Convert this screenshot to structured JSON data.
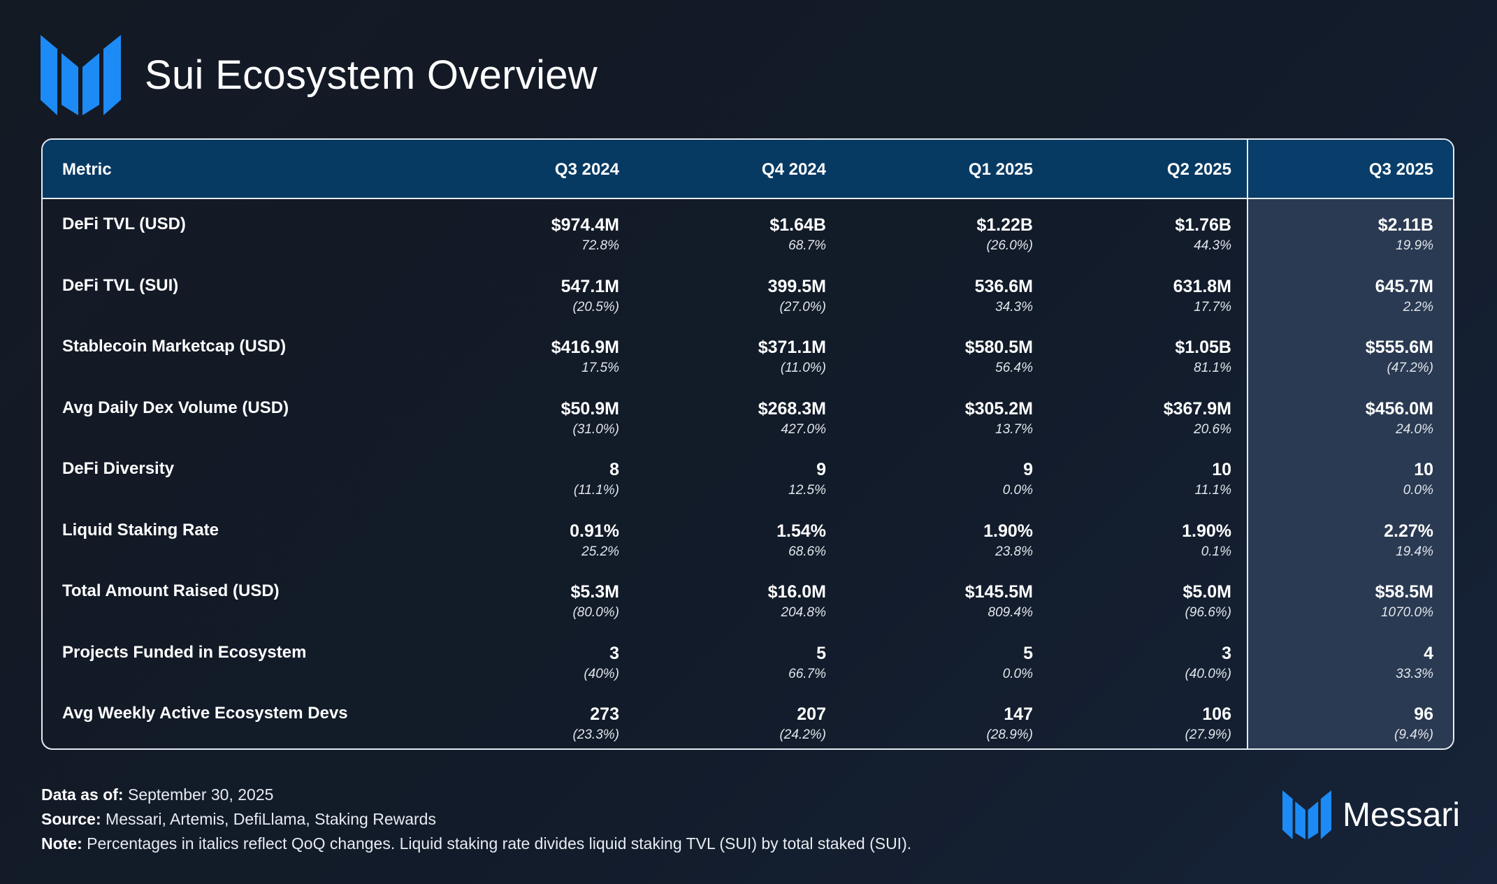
{
  "header": {
    "title": "Sui Ecosystem Overview",
    "logo_icon": "messari-m-logo-icon"
  },
  "colors": {
    "accent": "#1d8bf5",
    "header_bg": "#073a63",
    "highlight_col": "#2a3a52"
  },
  "table": {
    "headers": [
      "Metric",
      "Q3 2024",
      "Q4 2024",
      "Q1 2025",
      "Q2 2025",
      "Q3 2025"
    ],
    "rows": [
      {
        "label": "DeFi TVL (USD)",
        "cells": [
          {
            "value": "$974.4M",
            "change": "72.8%"
          },
          {
            "value": "$1.64B",
            "change": "68.7%"
          },
          {
            "value": "$1.22B",
            "change": "(26.0%)"
          },
          {
            "value": "$1.76B",
            "change": "44.3%"
          },
          {
            "value": "$2.11B",
            "change": "19.9%"
          }
        ]
      },
      {
        "label": "DeFi TVL (SUI)",
        "cells": [
          {
            "value": "547.1M",
            "change": "(20.5%)"
          },
          {
            "value": "399.5M",
            "change": "(27.0%)"
          },
          {
            "value": "536.6M",
            "change": "34.3%"
          },
          {
            "value": "631.8M",
            "change": "17.7%"
          },
          {
            "value": "645.7M",
            "change": "2.2%"
          }
        ]
      },
      {
        "label": "Stablecoin Marketcap (USD)",
        "cells": [
          {
            "value": "$416.9M",
            "change": "17.5%"
          },
          {
            "value": "$371.1M",
            "change": "(11.0%)"
          },
          {
            "value": "$580.5M",
            "change": "56.4%"
          },
          {
            "value": "$1.05B",
            "change": "81.1%"
          },
          {
            "value": "$555.6M",
            "change": "(47.2%)"
          }
        ]
      },
      {
        "label": "Avg Daily Dex Volume (USD)",
        "cells": [
          {
            "value": "$50.9M",
            "change": "(31.0%)"
          },
          {
            "value": "$268.3M",
            "change": "427.0%"
          },
          {
            "value": "$305.2M",
            "change": "13.7%"
          },
          {
            "value": "$367.9M",
            "change": "20.6%"
          },
          {
            "value": "$456.0M",
            "change": "24.0%"
          }
        ]
      },
      {
        "label": "DeFi Diversity",
        "cells": [
          {
            "value": "8",
            "change": "(11.1%)"
          },
          {
            "value": "9",
            "change": "12.5%"
          },
          {
            "value": "9",
            "change": "0.0%"
          },
          {
            "value": "10",
            "change": "11.1%"
          },
          {
            "value": "10",
            "change": "0.0%"
          }
        ]
      },
      {
        "label": "Liquid Staking Rate",
        "cells": [
          {
            "value": "0.91%",
            "change": "25.2%"
          },
          {
            "value": "1.54%",
            "change": "68.6%"
          },
          {
            "value": "1.90%",
            "change": "23.8%"
          },
          {
            "value": "1.90%",
            "change": "0.1%"
          },
          {
            "value": "2.27%",
            "change": "19.4%"
          }
        ]
      },
      {
        "label": "Total Amount Raised (USD)",
        "cells": [
          {
            "value": "$5.3M",
            "change": "(80.0%)"
          },
          {
            "value": "$16.0M",
            "change": "204.8%"
          },
          {
            "value": "$145.5M",
            "change": "809.4%"
          },
          {
            "value": "$5.0M",
            "change": "(96.6%)"
          },
          {
            "value": "$58.5M",
            "change": "1070.0%"
          }
        ]
      },
      {
        "label": "Projects Funded in Ecosystem",
        "cells": [
          {
            "value": "3",
            "change": "(40%)"
          },
          {
            "value": "5",
            "change": "66.7%"
          },
          {
            "value": "5",
            "change": "0.0%"
          },
          {
            "value": "3",
            "change": "(40.0%)"
          },
          {
            "value": "4",
            "change": "33.3%"
          }
        ]
      },
      {
        "label": "Avg Weekly Active Ecosystem Devs",
        "cells": [
          {
            "value": "273",
            "change": "(23.3%)"
          },
          {
            "value": "207",
            "change": "(24.2%)"
          },
          {
            "value": "147",
            "change": "(28.9%)"
          },
          {
            "value": "106",
            "change": "(27.9%)"
          },
          {
            "value": "96",
            "change": "(9.4%)"
          }
        ]
      }
    ]
  },
  "footer": {
    "data_label": "Data as of:",
    "data_value": " September 30, 2025",
    "source_label": "Source:",
    "source_value": " Messari, Artemis, DefiLlama, Staking Rewards",
    "note_label": "Note:",
    "note_value": " Percentages in italics reflect QoQ changes. Liquid staking rate divides liquid staking TVL (SUI) by total staked (SUI)."
  },
  "brand": {
    "name": "Messari"
  }
}
